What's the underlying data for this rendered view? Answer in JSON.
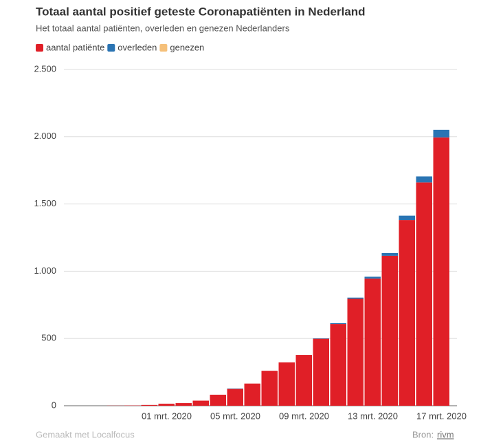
{
  "chart_data": {
    "type": "bar",
    "stacked": true,
    "title": "Totaal aantal positief geteste Coronapatiënten in Nederland",
    "subtitle": "Het totaal aantal patiënten, overleden en genezen Nederlanders",
    "categories": [
      null,
      null,
      null,
      null,
      "01 mrt. 2020",
      null,
      null,
      null,
      "05 mrt. 2020",
      null,
      null,
      null,
      "09 mrt. 2020",
      null,
      null,
      null,
      "13 mrt. 2020",
      null,
      null,
      null,
      "17 mrt. 2020"
    ],
    "series": [
      {
        "name": "aantal patiënte",
        "color": "#e01f27",
        "values": [
          0,
          1,
          2,
          6,
          15,
          20,
          38,
          82,
          125,
          165,
          260,
          322,
          378,
          498,
          608,
          795,
          945,
          1115,
          1380,
          1660,
          1995
        ]
      },
      {
        "name": "overleden",
        "color": "#2a74b3",
        "values": [
          0,
          0,
          0,
          0,
          0,
          0,
          0,
          0,
          3,
          0,
          0,
          0,
          0,
          3,
          6,
          9,
          14,
          20,
          33,
          45,
          56
        ]
      },
      {
        "name": "genezen",
        "color": "#f5c07a",
        "values": [
          0,
          0,
          0,
          0,
          0,
          0,
          0,
          0,
          0,
          0,
          0,
          0,
          0,
          0,
          0,
          0,
          0,
          0,
          0,
          0,
          0
        ]
      }
    ],
    "ylim": [
      0,
      2500
    ],
    "yticks": [
      0,
      500,
      {
        "value": 1000,
        "label": "1.000"
      },
      {
        "value": 1500,
        "label": "1.500"
      },
      {
        "value": 2000,
        "label": "2.000"
      },
      {
        "value": 2500,
        "label": "2.500"
      }
    ],
    "grid": true,
    "footer": {
      "credit": "Gemaakt met Localfocus",
      "source_label": "Bron:",
      "source_link": "rivm"
    }
  }
}
